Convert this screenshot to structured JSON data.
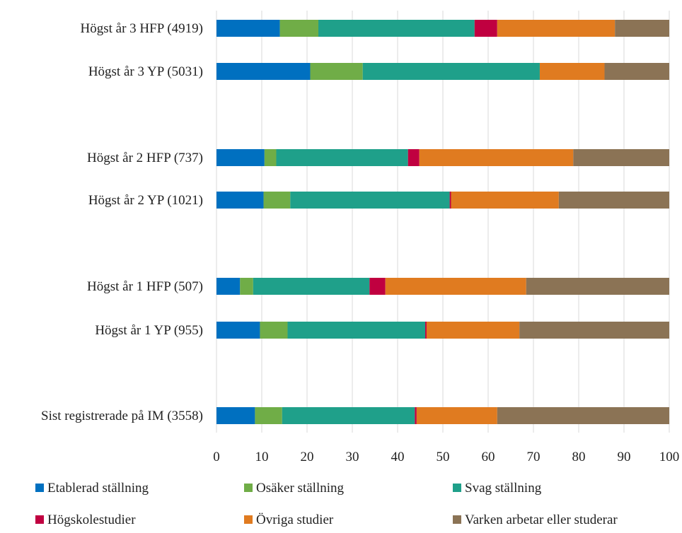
{
  "chart_data": {
    "type": "bar",
    "orientation": "horizontal",
    "stacked": true,
    "title": "",
    "xlabel": "",
    "ylabel": "",
    "xlim": [
      0,
      100
    ],
    "xticks": [
      "0",
      "10",
      "20",
      "30",
      "40",
      "50",
      "60",
      "70",
      "80",
      "90",
      "100"
    ],
    "grid": "vertical",
    "legend_position": "bottom",
    "categories": [
      "Högst år 3 HFP (4919)",
      "Högst år 3 YP (5031)",
      "Högst år 2 HFP (737)",
      "Högst år 2 YP (1021)",
      "Högst år 1 HFP (507)",
      "Högst år 1 YP (955)",
      "Sist registrerade på IM (3558)"
    ],
    "series": [
      {
        "name": "Etablerad ställning",
        "color": "#0070c0",
        "values": [
          14.0,
          20.7,
          10.6,
          10.4,
          5.2,
          9.6,
          8.5
        ]
      },
      {
        "name": "Osäker ställning",
        "color": "#70ad47",
        "values": [
          8.5,
          11.6,
          2.6,
          5.9,
          2.9,
          6.1,
          6.0
        ]
      },
      {
        "name": "Svag ställning",
        "color": "#1fa08a",
        "values": [
          34.5,
          39.1,
          29.1,
          35.2,
          25.7,
          30.4,
          29.3
        ]
      },
      {
        "name": "Högskolestudier",
        "color": "#c00040",
        "values": [
          5.0,
          0.0,
          2.5,
          0.3,
          3.5,
          0.3,
          0.4
        ]
      },
      {
        "name": "Övriga studier",
        "color": "#e07b20",
        "values": [
          26.0,
          14.3,
          34.0,
          23.8,
          31.1,
          20.5,
          17.8
        ]
      },
      {
        "name": "Varken arbetar eller studerar",
        "color": "#8b7355",
        "values": [
          12.0,
          14.3,
          21.2,
          24.4,
          31.6,
          33.1,
          38.0
        ]
      }
    ]
  }
}
